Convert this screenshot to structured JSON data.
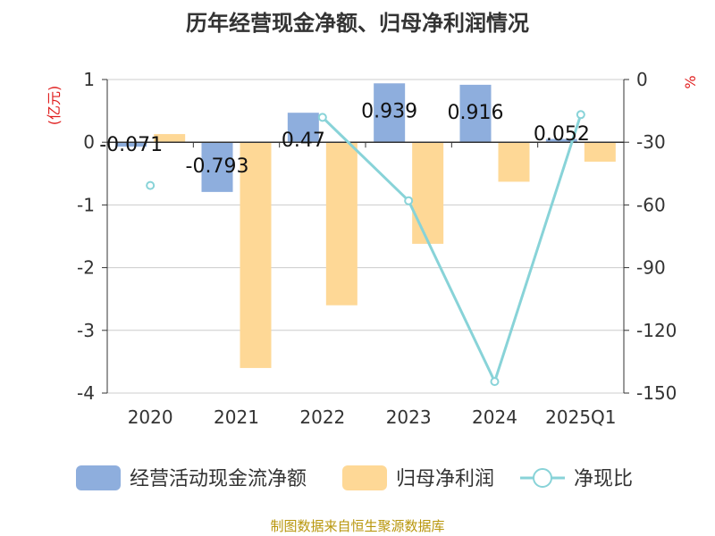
{
  "chart_data": {
    "type": "bar",
    "title": "历年经营现金净额、归母净利润情况",
    "categories": [
      "2020",
      "2021",
      "2022",
      "2023",
      "2024",
      "2025Q1"
    ],
    "y_left": {
      "unit": "(亿元)",
      "ylim": [
        -4,
        1
      ],
      "ticks": [
        "1",
        "0",
        "-1",
        "-2",
        "-3",
        "-4"
      ]
    },
    "y_right": {
      "unit": "%",
      "ylim": [
        -150,
        0
      ],
      "ticks": [
        "0",
        "-30",
        "-60",
        "-90",
        "-120",
        "-150"
      ]
    },
    "series": [
      {
        "name": "经营活动现金流净额",
        "axis": "left",
        "kind": "bar",
        "color": "#8eaedd",
        "values": [
          -0.071,
          -0.793,
          0.47,
          0.939,
          0.916,
          0.052
        ],
        "labels": [
          "-0.071",
          "-0.793",
          "0.47",
          "0.939",
          "0.916",
          "0.052"
        ]
      },
      {
        "name": "归母净利润",
        "axis": "left",
        "kind": "bar",
        "color": "#fed896",
        "values": [
          0.13,
          -3.6,
          -2.6,
          -1.62,
          -0.63,
          -0.31
        ]
      },
      {
        "name": "净现比",
        "axis": "right",
        "kind": "line",
        "color": "#88d3d8",
        "values": [
          -50.7,
          null,
          -18.1,
          -58,
          -144.5,
          -16.8
        ]
      }
    ],
    "grid": true,
    "legend": "bottom"
  },
  "source": "制图数据来自恒生聚源数据库"
}
